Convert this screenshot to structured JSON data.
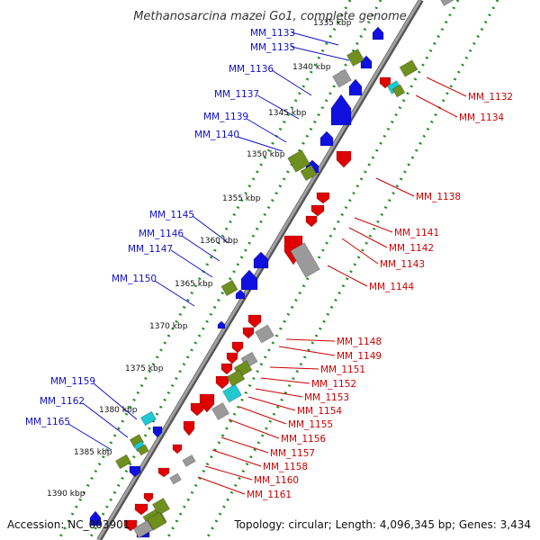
{
  "title": "Methanosarcina mazei Go1, complete genome",
  "accession": "Accession: NC_003901",
  "topology": "Topology: circular; Length: 4,096,345 bp; Genes: 3,434",
  "colors": {
    "forward_gene": "#1010e0",
    "reverse_gene": "#e00000",
    "backbone": "#888888",
    "tick": "#1f8f1f",
    "feature_green": "#6f8f1f",
    "feature_cyan": "#20c8d0",
    "feature_gray": "#9a9a9a",
    "label_left": "#1010c8",
    "label_right": "#cc0000"
  },
  "scale_labels": [
    "1335 kbp",
    "1340 kbp",
    "1345 kbp",
    "1350 kbp",
    "1355 kbp",
    "1360 kbp",
    "1365 kbp",
    "1370 kbp",
    "1375 kbp",
    "1380 kbp",
    "1385 kbp",
    "1390 kbp"
  ],
  "left_labels": [
    "MM_1133",
    "MM_1135",
    "MM_1136",
    "MM_1137",
    "MM_1139",
    "MM_1140",
    "MM_1145",
    "MM_1146",
    "MM_1147",
    "MM_1150",
    "MM_1159",
    "MM_1162",
    "MM_1165"
  ],
  "right_labels": [
    "MM_1132",
    "MM_1134",
    "MM_1138",
    "MM_1141",
    "MM_1142",
    "MM_1143",
    "MM_1144",
    "MM_1148",
    "MM_1149",
    "MM_1151",
    "MM_1152",
    "MM_1153",
    "MM_1154",
    "MM_1155",
    "MM_1156",
    "MM_1157",
    "MM_1158",
    "MM_1160",
    "MM_1161"
  ]
}
